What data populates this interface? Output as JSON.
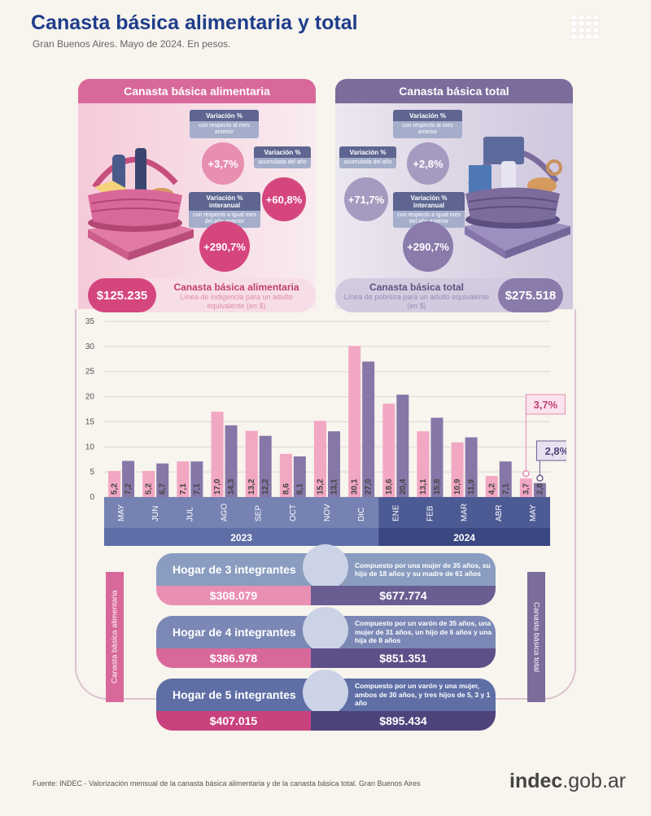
{
  "header": {
    "title": "Canasta básica alimentaria y total",
    "subtitle": "Gran Buenos Aires. Mayo de 2024. En pesos."
  },
  "cba": {
    "title": "Canasta básica alimentaria",
    "var_mes_title": "Variación %",
    "var_mes_desc": "con respecto al mes anterior",
    "var_mes": "+3,7%",
    "var_acum_title": "Variación %",
    "var_acum_desc": "acumulada del año",
    "var_acum": "+60,8%",
    "var_inter_title": "Variación % interanual",
    "var_inter_desc": "con respecto a igual mes del año anterior",
    "var_inter": "+290,7%",
    "price": "$125.235",
    "name": "Canasta básica alimentaria",
    "desc": "Línea de indigencia para un adulto equivalente (en $)"
  },
  "cbt": {
    "title": "Canasta básica total",
    "var_mes_title": "Variación %",
    "var_mes_desc": "con respecto al mes anterior",
    "var_mes": "+2,8%",
    "var_acum_title": "Variación %",
    "var_acum_desc": "acumulada del año",
    "var_acum": "+71,7%",
    "var_inter_title": "Variación % interanual",
    "var_inter_desc": "con respecto a igual mes del año anterior",
    "var_inter": "+290,7%",
    "price": "$275.518",
    "name": "Canasta básica total",
    "desc": "Línea de pobreza para un adulto equivalente (en $)"
  },
  "chart_data": {
    "type": "bar",
    "categories": [
      "MAY",
      "JUN",
      "JUL",
      "AGO",
      "SEP",
      "OCT",
      "NOV",
      "DIC",
      "ENE",
      "FEB",
      "MAR",
      "ABR",
      "MAY"
    ],
    "years": [
      {
        "label": "2023",
        "from": 0,
        "to": 7
      },
      {
        "label": "2024",
        "from": 8,
        "to": 12
      }
    ],
    "series": [
      {
        "values": [
          5.2,
          5.2,
          7.1,
          17.0,
          13.2,
          8.6,
          15.2,
          30.1,
          18.6,
          13.1,
          10.9,
          4.2,
          3.7
        ],
        "labels": [
          "5,2",
          "5,2",
          "7,1",
          "17,0",
          "13,2",
          "8,6",
          "15,2",
          "30,1",
          "18,6",
          "13,1",
          "10,9",
          "4,2",
          "3,7"
        ],
        "color": "#f2a7c3"
      },
      {
        "values": [
          7.2,
          6.7,
          7.1,
          14.3,
          12.2,
          8.1,
          13.1,
          27.0,
          20.4,
          15.8,
          11.9,
          7.1,
          2.8
        ],
        "labels": [
          "7,2",
          "6,7",
          "7,1",
          "14,3",
          "12,2",
          "8,1",
          "13,1",
          "27,0",
          "20,4",
          "15,8",
          "11,9",
          "7,1",
          "2,8"
        ],
        "color": "#8677a8"
      }
    ],
    "yticks": [
      0,
      5,
      10,
      15,
      20,
      25,
      30,
      35
    ],
    "ylim": [
      0,
      35
    ],
    "callouts": {
      "cba": "3,7%",
      "cbt": "2,8%"
    },
    "grid": true
  },
  "hogares": [
    {
      "title": "Hogar de 3 integrantes",
      "desc": "Compuesto por una mujer de 35 años, su hijo de 18 años y su madre de 61 años",
      "cba": "$308.079",
      "cbt": "$677.774"
    },
    {
      "title": "Hogar de 4 integrantes",
      "desc": "Compuesto por un varón de 35 años, una mujer de 31 años, un hijo de 6 años y una hija de 8 años",
      "cba": "$386.978",
      "cbt": "$851.351"
    },
    {
      "title": "Hogar de 5 integrantes",
      "desc": "Compuesto por un varón y una mujer, ambos de 30 años, y tres hijos de 5, 3 y 1 año",
      "cba": "$407.015",
      "cbt": "$895.434"
    }
  ],
  "side_labels": {
    "left": "Canasta básica alimentaria",
    "right": "Canasta básica total"
  },
  "footer": {
    "source": "Fuente: INDEC - Valorización mensual de la canasta básica alimentaria y de la canasta básica total. Gran Buenos Aires",
    "brand_bold": "indec",
    "brand_rest": ".gob.ar"
  }
}
